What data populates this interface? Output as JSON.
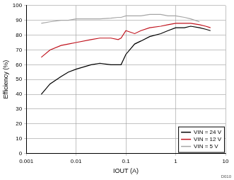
{
  "chart_data": {
    "type": "line",
    "x_label": "IOUT (A)",
    "y_label": "Efficiency (%)",
    "annotations": [
      "D010"
    ],
    "x": [
      0.002,
      0.003,
      0.005,
      0.007,
      0.01,
      0.02,
      0.03,
      0.05,
      0.07,
      0.08,
      0.1,
      0.15,
      0.2,
      0.3,
      0.5,
      0.7,
      1,
      1.5,
      2,
      3,
      4,
      5
    ],
    "series": [
      {
        "name": "VIN = 24 V",
        "color": "#000000",
        "values": [
          40,
          47,
          52,
          55,
          57,
          60,
          61,
          60,
          60,
          60,
          67,
          74,
          76,
          79,
          81,
          83,
          85,
          85,
          86,
          85,
          84,
          83
        ]
      },
      {
        "name": "VIN = 12 V",
        "color": "#c0141e",
        "values": [
          65,
          70,
          73,
          74,
          75,
          77,
          78,
          78,
          77,
          78,
          83,
          81,
          83,
          85,
          86,
          87,
          88,
          88,
          88,
          87,
          86,
          85
        ]
      },
      {
        "name": "VIN = 5 V",
        "color": "#a6a6a6",
        "values": [
          88,
          89,
          90,
          90,
          91,
          91,
          91,
          91.5,
          92,
          92,
          93,
          93,
          93,
          94,
          94,
          93,
          93,
          92,
          91,
          89,
          null,
          null
        ]
      }
    ],
    "log": "x",
    "xlim": [
      0.001,
      10
    ],
    "xticks": [
      0.001,
      0.01,
      0.1,
      1,
      10
    ],
    "ylim": [
      0,
      100
    ],
    "yticks": [
      0,
      10,
      20,
      30,
      40,
      50,
      60,
      70,
      80,
      90,
      100
    ],
    "grid": true,
    "legend": "lower right"
  }
}
